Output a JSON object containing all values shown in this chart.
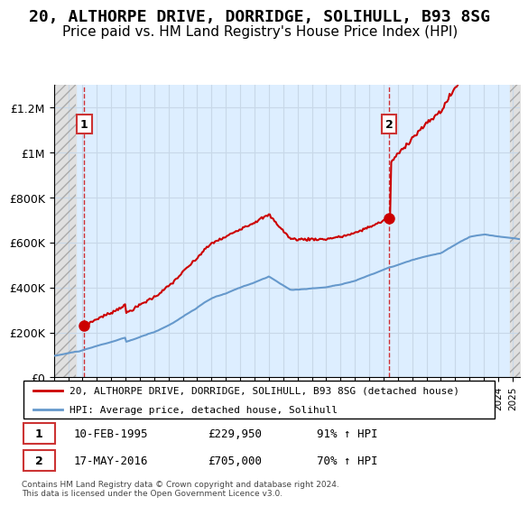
{
  "title": "20, ALTHORPE DRIVE, DORRIDGE, SOLIHULL, B93 8SG",
  "subtitle": "Price paid vs. HM Land Registry's House Price Index (HPI)",
  "title_fontsize": 13,
  "subtitle_fontsize": 11,
  "ylabel_ticks": [
    "£0",
    "£200K",
    "£400K",
    "£600K",
    "£800K",
    "£1M",
    "£1.2M"
  ],
  "ytick_values": [
    0,
    200000,
    400000,
    600000,
    800000,
    1000000,
    1200000
  ],
  "ylim": [
    0,
    1300000
  ],
  "xlim_start": 1993.0,
  "xlim_end": 2025.5,
  "sale1_date": 1995.12,
  "sale1_price": 229950,
  "sale1_label": "1",
  "sale2_date": 2016.38,
  "sale2_price": 705000,
  "sale2_label": "2",
  "legend_line1": "20, ALTHORPE DRIVE, DORRIDGE, SOLIHULL, B93 8SG (detached house)",
  "legend_line2": "HPI: Average price, detached house, Solihull",
  "annotation1_date": "10-FEB-1995",
  "annotation1_price": "£229,950",
  "annotation1_hpi": "91% ↑ HPI",
  "annotation2_date": "17-MAY-2016",
  "annotation2_price": "£705,000",
  "annotation2_hpi": "70% ↑ HPI",
  "footer": "Contains HM Land Registry data © Crown copyright and database right 2024.\nThis data is licensed under the Open Government Licence v3.0.",
  "price_color": "#cc0000",
  "hpi_color": "#6699cc",
  "grid_color": "#c8d8e8",
  "bg_plot": "#ddeeff",
  "bg_hatch": "#e0e0e0"
}
